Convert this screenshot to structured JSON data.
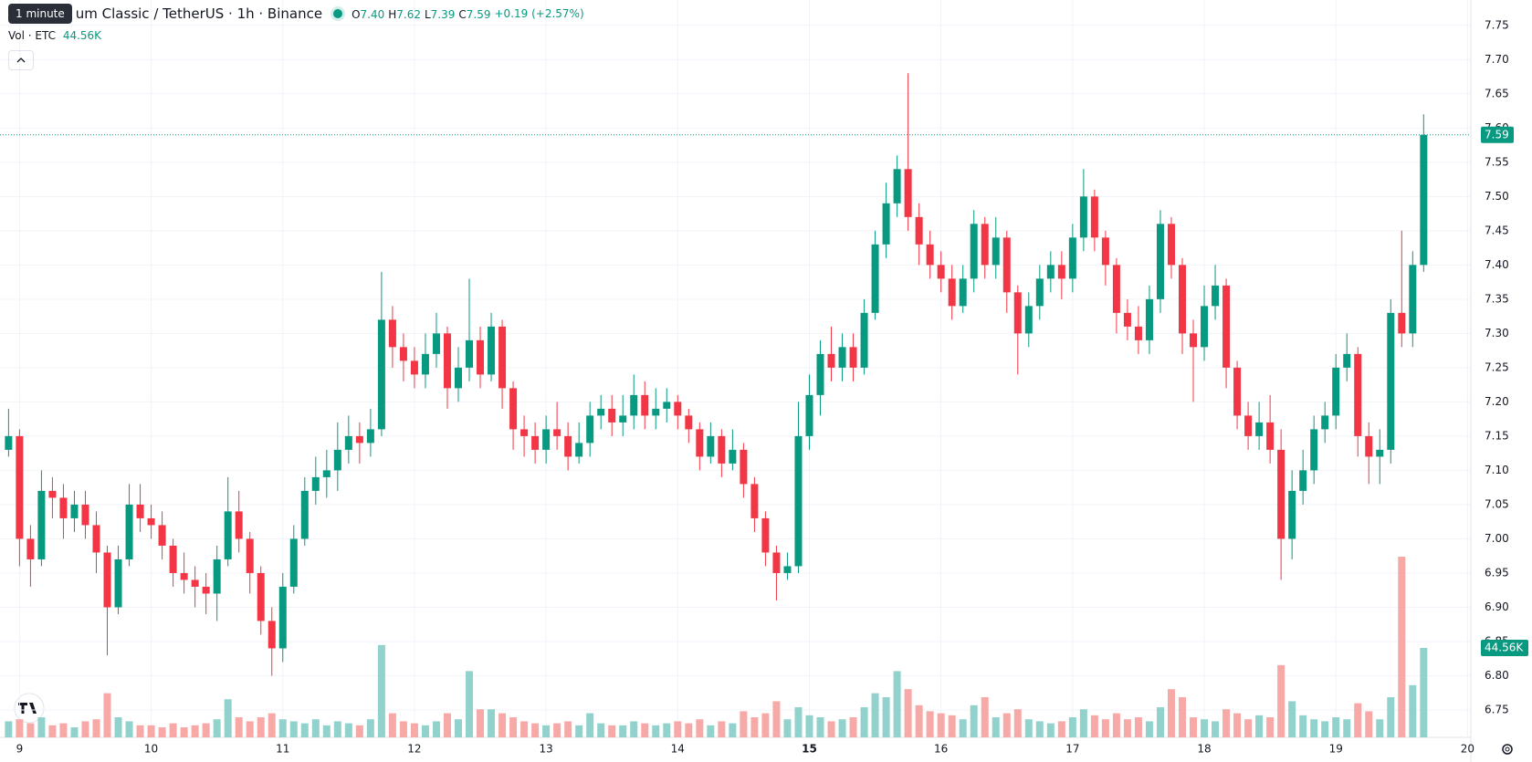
{
  "chart_data": {
    "type": "candlestick",
    "tooltip": "1 minute",
    "title": "um Classic / TetherUS · 1h · Binance",
    "ohlc_letters": [
      "O",
      "H",
      "L",
      "C"
    ],
    "ohlc_labels": [
      "7.40",
      "7.62",
      "7.39",
      "7.59"
    ],
    "change_label": "+0.19 (+2.57%)",
    "volume_title": "Vol · ETC",
    "volume_label": "44.56K",
    "last_price_label": "7.59",
    "up_color": "#089981",
    "down_color": "#f23645",
    "volume_up_color": "#92d2cc",
    "volume_down_color": "#f7a9a7",
    "grid": true,
    "xlim": [
      -3.56,
      264.6
    ],
    "xticks": [
      {
        "value": 0,
        "label": "9"
      },
      {
        "value": 24,
        "label": "10"
      },
      {
        "value": 48,
        "label": "11"
      },
      {
        "value": 72,
        "label": "12"
      },
      {
        "value": 96,
        "label": "13"
      },
      {
        "value": 120,
        "label": "14"
      },
      {
        "value": 144,
        "label": "15"
      },
      {
        "value": 168,
        "label": "16"
      },
      {
        "value": 192,
        "label": "17"
      },
      {
        "value": 216,
        "label": "18"
      },
      {
        "value": 240,
        "label": "19"
      },
      {
        "value": 264,
        "label": "20"
      }
    ],
    "ylim": [
      6.71,
      7.787
    ],
    "yticks": [
      6.75,
      {
        "value": 6.8,
        "label": "6.80"
      },
      6.85,
      {
        "value": 6.9,
        "label": "6.90"
      },
      6.95,
      {
        "value": 7.0,
        "label": "7.00"
      },
      7.05,
      {
        "value": 7.1,
        "label": "7.10"
      },
      7.15,
      {
        "value": 7.2,
        "label": "7.20"
      },
      7.25,
      {
        "value": 7.3,
        "label": "7.30"
      },
      7.35,
      {
        "value": 7.4,
        "label": "7.40"
      },
      7.45,
      {
        "value": 7.5,
        "label": "7.50"
      },
      7.55,
      {
        "value": 7.6,
        "label": "7.60"
      },
      7.65,
      {
        "value": 7.7,
        "label": "7.70"
      },
      7.75
    ],
    "x": [
      -2,
      0,
      2,
      4,
      6,
      8,
      10,
      12,
      14,
      16,
      18,
      20,
      22,
      24,
      26,
      28,
      30,
      32,
      34,
      36,
      38,
      40,
      42,
      44,
      46,
      48,
      50,
      52,
      54,
      56,
      58,
      60,
      62,
      64,
      66,
      68,
      70,
      72,
      74,
      76,
      78,
      80,
      82,
      84,
      86,
      88,
      90,
      92,
      94,
      96,
      98,
      100,
      102,
      104,
      106,
      108,
      110,
      112,
      114,
      116,
      118,
      120,
      122,
      124,
      126,
      128,
      130,
      132,
      134,
      136,
      138,
      140,
      142,
      144,
      146,
      148,
      150,
      152,
      154,
      156,
      158,
      160,
      162,
      164,
      166,
      168,
      170,
      172,
      174,
      176,
      178,
      180,
      182,
      184,
      186,
      188,
      190,
      192,
      194,
      196,
      198,
      200,
      202,
      204,
      206,
      208,
      210,
      212,
      214,
      216,
      218,
      220,
      222,
      224,
      226,
      228,
      230,
      232,
      234,
      236,
      238,
      240,
      242,
      244,
      246,
      248,
      250,
      252,
      254,
      256
    ],
    "candles": [
      [
        7.13,
        7.19,
        7.12,
        7.15,
        8000
      ],
      [
        7.15,
        7.16,
        6.96,
        7.0,
        9000
      ],
      [
        7.0,
        7.02,
        6.93,
        6.97,
        7000
      ],
      [
        6.97,
        7.1,
        6.96,
        7.07,
        10000
      ],
      [
        7.07,
        7.09,
        7.03,
        7.06,
        6000
      ],
      [
        7.06,
        7.08,
        7.0,
        7.03,
        7000
      ],
      [
        7.03,
        7.07,
        7.01,
        7.05,
        5000
      ],
      [
        7.05,
        7.07,
        7.0,
        7.02,
        8000
      ],
      [
        7.02,
        7.04,
        6.95,
        6.98,
        9000
      ],
      [
        6.98,
        6.99,
        6.83,
        6.9,
        22000
      ],
      [
        6.9,
        6.99,
        6.89,
        6.97,
        10000
      ],
      [
        6.97,
        7.08,
        6.96,
        7.05,
        8000
      ],
      [
        7.05,
        7.08,
        7.01,
        7.03,
        6000
      ],
      [
        7.03,
        7.05,
        7.0,
        7.02,
        6000
      ],
      [
        7.02,
        7.04,
        6.97,
        6.99,
        5000
      ],
      [
        6.99,
        7.0,
        6.93,
        6.95,
        7000
      ],
      [
        6.95,
        6.98,
        6.92,
        6.94,
        5000
      ],
      [
        6.94,
        6.96,
        6.9,
        6.93,
        6000
      ],
      [
        6.93,
        6.95,
        6.89,
        6.92,
        7000
      ],
      [
        6.92,
        6.99,
        6.88,
        6.97,
        9000
      ],
      [
        6.97,
        7.09,
        6.96,
        7.04,
        19000
      ],
      [
        7.04,
        7.07,
        6.98,
        7.0,
        10000
      ],
      [
        7.0,
        7.01,
        6.92,
        6.95,
        8000
      ],
      [
        6.95,
        6.96,
        6.86,
        6.88,
        10000
      ],
      [
        6.88,
        6.9,
        6.8,
        6.84,
        12000
      ],
      [
        6.84,
        6.95,
        6.82,
        6.93,
        9000
      ],
      [
        6.93,
        7.02,
        6.92,
        7.0,
        8000
      ],
      [
        7.0,
        7.09,
        6.99,
        7.07,
        7000
      ],
      [
        7.07,
        7.12,
        7.05,
        7.09,
        9000
      ],
      [
        7.09,
        7.13,
        7.06,
        7.1,
        6000
      ],
      [
        7.1,
        7.17,
        7.07,
        7.13,
        8000
      ],
      [
        7.13,
        7.18,
        7.11,
        7.15,
        7000
      ],
      [
        7.15,
        7.17,
        7.11,
        7.14,
        6000
      ],
      [
        7.14,
        7.19,
        7.12,
        7.16,
        9000
      ],
      [
        7.16,
        7.39,
        7.15,
        7.32,
        46000
      ],
      [
        7.32,
        7.34,
        7.25,
        7.28,
        12000
      ],
      [
        7.28,
        7.3,
        7.23,
        7.26,
        8000
      ],
      [
        7.26,
        7.28,
        7.22,
        7.24,
        7000
      ],
      [
        7.24,
        7.3,
        7.22,
        7.27,
        6000
      ],
      [
        7.27,
        7.33,
        7.25,
        7.3,
        8000
      ],
      [
        7.3,
        7.31,
        7.19,
        7.22,
        12000
      ],
      [
        7.22,
        7.28,
        7.2,
        7.25,
        9000
      ],
      [
        7.25,
        7.38,
        7.23,
        7.29,
        33000
      ],
      [
        7.29,
        7.31,
        7.22,
        7.24,
        14000
      ],
      [
        7.24,
        7.33,
        7.23,
        7.31,
        14000
      ],
      [
        7.31,
        7.32,
        7.19,
        7.22,
        12000
      ],
      [
        7.22,
        7.23,
        7.13,
        7.16,
        10000
      ],
      [
        7.16,
        7.18,
        7.12,
        7.15,
        8000
      ],
      [
        7.15,
        7.17,
        7.11,
        7.13,
        7000
      ],
      [
        7.13,
        7.18,
        7.11,
        7.16,
        6000
      ],
      [
        7.16,
        7.2,
        7.13,
        7.15,
        7000
      ],
      [
        7.15,
        7.17,
        7.1,
        7.12,
        8000
      ],
      [
        7.12,
        7.17,
        7.11,
        7.14,
        6000
      ],
      [
        7.14,
        7.2,
        7.12,
        7.18,
        12000
      ],
      [
        7.18,
        7.21,
        7.16,
        7.19,
        7000
      ],
      [
        7.19,
        7.21,
        7.15,
        7.17,
        6000
      ],
      [
        7.17,
        7.21,
        7.15,
        7.18,
        6000
      ],
      [
        7.18,
        7.24,
        7.16,
        7.21,
        8000
      ],
      [
        7.21,
        7.23,
        7.16,
        7.18,
        7000
      ],
      [
        7.18,
        7.22,
        7.16,
        7.19,
        6000
      ],
      [
        7.19,
        7.22,
        7.17,
        7.2,
        7000
      ],
      [
        7.2,
        7.21,
        7.16,
        7.18,
        8000
      ],
      [
        7.18,
        7.19,
        7.14,
        7.16,
        7000
      ],
      [
        7.16,
        7.17,
        7.1,
        7.12,
        9000
      ],
      [
        7.12,
        7.17,
        7.11,
        7.15,
        6000
      ],
      [
        7.15,
        7.16,
        7.09,
        7.11,
        8000
      ],
      [
        7.11,
        7.16,
        7.1,
        7.13,
        7000
      ],
      [
        7.13,
        7.14,
        7.06,
        7.08,
        13000
      ],
      [
        7.08,
        7.09,
        7.01,
        7.03,
        10000
      ],
      [
        7.03,
        7.04,
        6.96,
        6.98,
        12000
      ],
      [
        6.98,
        6.99,
        6.91,
        6.95,
        18000
      ],
      [
        6.95,
        6.98,
        6.94,
        6.96,
        9000
      ],
      [
        6.96,
        7.2,
        6.95,
        7.15,
        15000
      ],
      [
        7.15,
        7.24,
        7.13,
        7.21,
        11000
      ],
      [
        7.21,
        7.29,
        7.18,
        7.27,
        10000
      ],
      [
        7.27,
        7.31,
        7.23,
        7.25,
        8000
      ],
      [
        7.25,
        7.3,
        7.23,
        7.28,
        9000
      ],
      [
        7.28,
        7.3,
        7.23,
        7.25,
        10000
      ],
      [
        7.25,
        7.35,
        7.24,
        7.33,
        15000
      ],
      [
        7.33,
        7.45,
        7.32,
        7.43,
        22000
      ],
      [
        7.43,
        7.52,
        7.41,
        7.49,
        20000
      ],
      [
        7.49,
        7.56,
        7.47,
        7.54,
        33000
      ],
      [
        7.54,
        7.68,
        7.45,
        7.47,
        24000
      ],
      [
        7.47,
        7.49,
        7.4,
        7.43,
        16000
      ],
      [
        7.43,
        7.45,
        7.38,
        7.4,
        13000
      ],
      [
        7.4,
        7.42,
        7.36,
        7.38,
        12000
      ],
      [
        7.38,
        7.4,
        7.32,
        7.34,
        11000
      ],
      [
        7.34,
        7.4,
        7.33,
        7.38,
        9000
      ],
      [
        7.38,
        7.48,
        7.36,
        7.46,
        16000
      ],
      [
        7.46,
        7.47,
        7.38,
        7.4,
        20000
      ],
      [
        7.4,
        7.47,
        7.38,
        7.44,
        10000
      ],
      [
        7.44,
        7.45,
        7.33,
        7.36,
        12000
      ],
      [
        7.36,
        7.37,
        7.24,
        7.3,
        14000
      ],
      [
        7.3,
        7.36,
        7.28,
        7.34,
        9000
      ],
      [
        7.34,
        7.4,
        7.32,
        7.38,
        8000
      ],
      [
        7.38,
        7.42,
        7.36,
        7.4,
        7000
      ],
      [
        7.4,
        7.42,
        7.35,
        7.38,
        8000
      ],
      [
        7.38,
        7.46,
        7.36,
        7.44,
        10000
      ],
      [
        7.44,
        7.54,
        7.42,
        7.5,
        14000
      ],
      [
        7.5,
        7.51,
        7.42,
        7.44,
        11000
      ],
      [
        7.44,
        7.45,
        7.37,
        7.4,
        9000
      ],
      [
        7.4,
        7.41,
        7.3,
        7.33,
        12000
      ],
      [
        7.33,
        7.35,
        7.29,
        7.31,
        9000
      ],
      [
        7.31,
        7.34,
        7.27,
        7.29,
        10000
      ],
      [
        7.29,
        7.37,
        7.27,
        7.35,
        8000
      ],
      [
        7.35,
        7.48,
        7.33,
        7.46,
        15000
      ],
      [
        7.46,
        7.47,
        7.38,
        7.4,
        24000
      ],
      [
        7.4,
        7.41,
        7.27,
        7.3,
        20000
      ],
      [
        7.3,
        7.32,
        7.2,
        7.28,
        10000
      ],
      [
        7.28,
        7.37,
        7.26,
        7.34,
        9000
      ],
      [
        7.34,
        7.4,
        7.32,
        7.37,
        8000
      ],
      [
        7.37,
        7.38,
        7.22,
        7.25,
        14000
      ],
      [
        7.25,
        7.26,
        7.16,
        7.18,
        12000
      ],
      [
        7.18,
        7.2,
        7.13,
        7.15,
        9000
      ],
      [
        7.15,
        7.2,
        7.13,
        7.17,
        11000
      ],
      [
        7.17,
        7.21,
        7.11,
        7.13,
        10000
      ],
      [
        7.13,
        7.16,
        6.94,
        7.0,
        36000
      ],
      [
        7.0,
        7.1,
        6.97,
        7.07,
        18000
      ],
      [
        7.07,
        7.13,
        7.05,
        7.1,
        11000
      ],
      [
        7.1,
        7.18,
        7.08,
        7.16,
        9000
      ],
      [
        7.16,
        7.2,
        7.14,
        7.18,
        8000
      ],
      [
        7.18,
        7.27,
        7.16,
        7.25,
        10000
      ],
      [
        7.25,
        7.3,
        7.23,
        7.27,
        9000
      ],
      [
        7.27,
        7.28,
        7.12,
        7.15,
        17000
      ],
      [
        7.15,
        7.17,
        7.08,
        7.12,
        13000
      ],
      [
        7.12,
        7.16,
        7.08,
        7.13,
        9000
      ],
      [
        7.13,
        7.35,
        7.11,
        7.33,
        20000
      ],
      [
        7.33,
        7.45,
        7.28,
        7.3,
        90000
      ],
      [
        7.3,
        7.42,
        7.28,
        7.4,
        26000
      ],
      [
        7.4,
        7.62,
        7.39,
        7.59,
        44560
      ]
    ]
  }
}
